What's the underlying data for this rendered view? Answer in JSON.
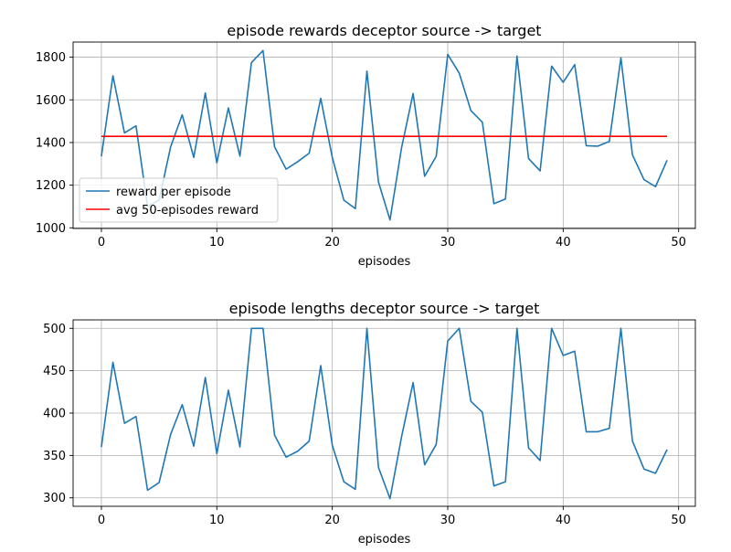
{
  "chart_data": [
    {
      "type": "line",
      "title": "episode rewards deceptor source -> target",
      "xlabel": "episodes",
      "ylabel": "",
      "xlim": [
        -2.45,
        51.45
      ],
      "ylim": [
        997,
        1871
      ],
      "xticks": [
        0,
        10,
        20,
        30,
        40,
        50
      ],
      "yticks": [
        1000,
        1200,
        1400,
        1600,
        1800
      ],
      "grid": true,
      "legend": "lower-left",
      "series": [
        {
          "name": "reward per episode",
          "color": "#1f77b4",
          "x": [
            0,
            1,
            2,
            3,
            4,
            5,
            6,
            7,
            8,
            9,
            10,
            11,
            12,
            13,
            14,
            15,
            16,
            17,
            18,
            19,
            20,
            21,
            22,
            23,
            24,
            25,
            26,
            27,
            28,
            29,
            30,
            31,
            32,
            33,
            34,
            35,
            36,
            37,
            38,
            39,
            40,
            41,
            42,
            43,
            44,
            45,
            46,
            47,
            48,
            49
          ],
          "y": [
            1335,
            1713,
            1445,
            1478,
            1100,
            1130,
            1380,
            1530,
            1330,
            1632,
            1305,
            1562,
            1336,
            1775,
            1831,
            1380,
            1275,
            1310,
            1350,
            1607,
            1330,
            1130,
            1090,
            1735,
            1215,
            1037,
            1375,
            1630,
            1242,
            1335,
            1813,
            1725,
            1550,
            1495,
            1113,
            1135,
            1805,
            1325,
            1267,
            1758,
            1682,
            1765,
            1385,
            1383,
            1405,
            1797,
            1342,
            1226,
            1193,
            1317
          ]
        },
        {
          "name": "avg 50-episodes reward",
          "color": "#ff0000",
          "x": [
            0,
            49
          ],
          "y": [
            1429,
            1429
          ]
        }
      ]
    },
    {
      "type": "line",
      "title": "episode lengths deceptor source -> target",
      "xlabel": "episodes",
      "ylabel": "",
      "xlim": [
        -2.45,
        51.45
      ],
      "ylim": [
        290,
        510
      ],
      "xticks": [
        0,
        10,
        20,
        30,
        40,
        50
      ],
      "yticks": [
        300,
        350,
        400,
        450,
        500
      ],
      "grid": true,
      "legend": "none",
      "series": [
        {
          "color": "#1f77b4",
          "x": [
            0,
            1,
            2,
            3,
            4,
            5,
            6,
            7,
            8,
            9,
            10,
            11,
            12,
            13,
            14,
            15,
            16,
            17,
            18,
            19,
            20,
            21,
            22,
            23,
            24,
            25,
            26,
            27,
            28,
            29,
            30,
            31,
            32,
            33,
            34,
            35,
            36,
            37,
            38,
            39,
            40,
            41,
            42,
            43,
            44,
            45,
            46,
            47,
            48,
            49
          ],
          "y": [
            360,
            460,
            388,
            396,
            309,
            318,
            375,
            410,
            361,
            442,
            352,
            427,
            360,
            500,
            500,
            374,
            348,
            355,
            367,
            456,
            362,
            319,
            310,
            500,
            336,
            299,
            372,
            436,
            339,
            363,
            485,
            500,
            414,
            401,
            314,
            319,
            500,
            359,
            344,
            500,
            468,
            473,
            378,
            378,
            382,
            500,
            367,
            334,
            329,
            357
          ]
        }
      ]
    }
  ]
}
